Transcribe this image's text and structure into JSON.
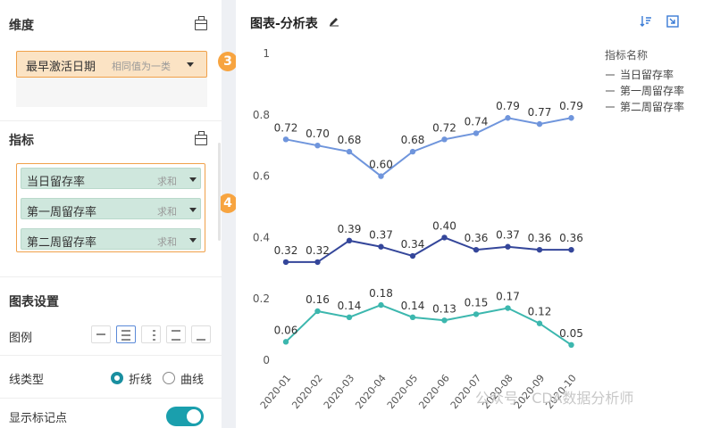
{
  "left_panel": {
    "dimension": {
      "title": "维度",
      "field": {
        "label": "最早激活日期",
        "sub": "相同值为一类",
        "badge": "3"
      }
    },
    "metrics": {
      "title": "指标",
      "badge": "4",
      "items": [
        {
          "label": "当日留存率",
          "agg": "求和"
        },
        {
          "label": "第一周留存率",
          "agg": "求和"
        },
        {
          "label": "第二周留存率",
          "agg": "求和"
        }
      ]
    },
    "chart_settings": {
      "title": "图表设置",
      "legend_label": "图例",
      "line_type_label": "线类型",
      "line_type_options": [
        "折线",
        "曲线"
      ],
      "line_type_selected": "折线",
      "show_markers_label": "显示标记点",
      "show_markers": true
    }
  },
  "chart_panel": {
    "title": "图表-分析表",
    "legend_title": "指标名称",
    "watermark": "公众号 · CDA数据分析师"
  },
  "chart_data": {
    "type": "line",
    "categories": [
      "2020-01",
      "2020-02",
      "2020-03",
      "2020-04",
      "2020-05",
      "2020-06",
      "2020-07",
      "2020-08",
      "2020-09",
      "2020-10"
    ],
    "y_ticks": [
      "0",
      "0.2",
      "0.4",
      "0.6",
      "0.8",
      "1"
    ],
    "ylim": [
      0,
      1
    ],
    "legend_position": "top-right",
    "series": [
      {
        "name": "当日留存率",
        "color": "#6f95dc",
        "values": [
          0.72,
          0.7,
          0.68,
          0.6,
          0.68,
          0.72,
          0.74,
          0.79,
          0.77,
          0.79
        ],
        "labels": [
          "0.72",
          "0.70",
          "0.68",
          "0.60",
          "0.68",
          "0.72",
          "0.74",
          "0.79",
          "0.77",
          "0.79"
        ]
      },
      {
        "name": "第一周留存率",
        "color": "#34469a",
        "values": [
          0.32,
          0.32,
          0.39,
          0.37,
          0.34,
          0.4,
          0.36,
          0.37,
          0.36,
          0.36
        ],
        "labels": [
          "0.32",
          "0.32",
          "0.39",
          "0.37",
          "0.34",
          "0.40",
          "0.36",
          "0.37",
          "0.36",
          "0.36"
        ]
      },
      {
        "name": "第二周留存率",
        "color": "#3cb7ae",
        "values": [
          0.06,
          0.16,
          0.14,
          0.18,
          0.14,
          0.13,
          0.15,
          0.17,
          0.12,
          0.05
        ],
        "labels": [
          "0.06",
          "0.16",
          "0.14",
          "0.18",
          "0.14",
          "0.13",
          "0.15",
          "0.17",
          "0.12",
          "0.05"
        ]
      }
    ]
  }
}
